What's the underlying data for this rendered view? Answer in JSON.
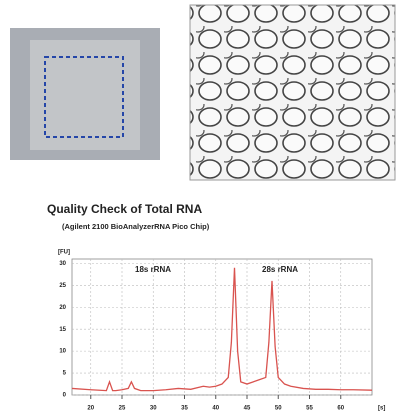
{
  "chart_data": {
    "type": "line",
    "title": "Quality Check of Total RNA",
    "subtitle": "(Agilent 2100 BioAnalyzerRNA Pico Chip)",
    "y_label": "[FU]",
    "x_label": "[s]",
    "annotations": [
      "18s rRNA",
      "28s rRNA"
    ],
    "xlim": [
      17,
      65
    ],
    "xticks": [
      20,
      25,
      30,
      35,
      40,
      45,
      50,
      55,
      60
    ],
    "ylim": [
      0,
      31
    ],
    "yticks": [
      0,
      5,
      10,
      15,
      20,
      25,
      30
    ],
    "grid": true,
    "series": [
      {
        "color": "#d9534f",
        "x": [
          17,
          20,
          22.5,
          23,
          23.5,
          24,
          25,
          26,
          26.5,
          27,
          28,
          30,
          32,
          34,
          36,
          38,
          39,
          40,
          41,
          42,
          42.5,
          43,
          43.5,
          44,
          45,
          46,
          47,
          48,
          48.5,
          49,
          49.5,
          50,
          51,
          52,
          54,
          56,
          58,
          60,
          62,
          65
        ],
        "values": [
          1.5,
          1.2,
          1,
          3,
          1,
          1,
          1.2,
          1.5,
          3,
          1.5,
          1,
          1,
          1.2,
          1.5,
          1.3,
          2,
          1.8,
          2,
          2.5,
          4,
          12,
          29,
          10,
          3,
          2.5,
          3,
          3.5,
          4,
          12,
          26,
          11,
          4,
          2.5,
          2,
          1.5,
          1.3,
          1.3,
          1.2,
          1.2,
          1.1
        ]
      }
    ]
  }
}
